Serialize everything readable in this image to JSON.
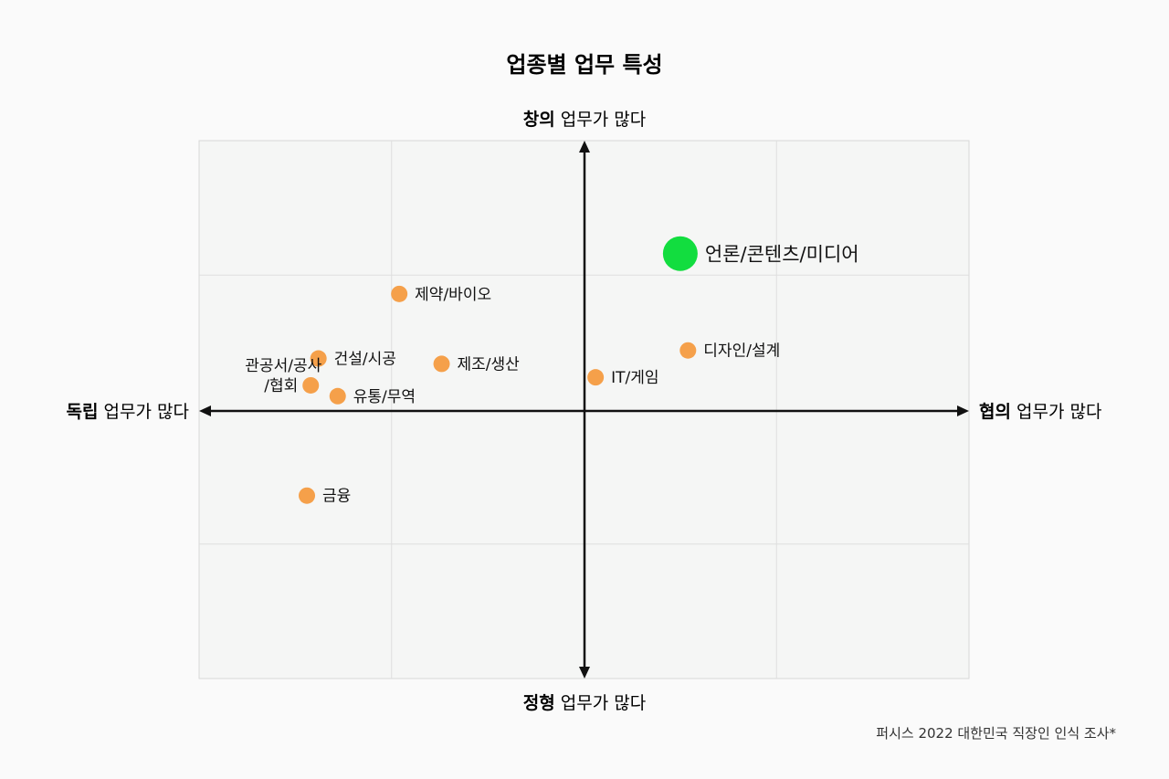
{
  "chart_data": {
    "type": "scatter",
    "title": "업종별 업무 특성",
    "axis_labels": {
      "top": {
        "bold": "창의",
        "rest": " 업무가 많다"
      },
      "bottom": {
        "bold": "정형",
        "rest": " 업무가 많다"
      },
      "left": {
        "bold": "독립",
        "rest": " 업무가 많다"
      },
      "right": {
        "bold": "협의",
        "rest": " 업무가 많다"
      }
    },
    "xlim": [
      -1,
      1
    ],
    "ylim": [
      -1,
      1
    ],
    "grid": true,
    "colors": {
      "default": "#f5a04a",
      "highlight": "#12dd3f"
    },
    "points": [
      {
        "label": "언론/콘텐츠/미디어",
        "x": 0.25,
        "y": 0.58,
        "highlight": true
      },
      {
        "label": "제약/바이오",
        "x": -0.48,
        "y": 0.43,
        "highlight": false
      },
      {
        "label": "건설/시공",
        "x": -0.69,
        "y": 0.19,
        "highlight": false
      },
      {
        "label": "제조/생산",
        "x": -0.37,
        "y": 0.17,
        "highlight": false
      },
      {
        "label": "디자인/설계",
        "x": 0.27,
        "y": 0.22,
        "highlight": false
      },
      {
        "label": "IT/게임",
        "x": 0.03,
        "y": 0.12,
        "highlight": false
      },
      {
        "label": "관공서/공사/협회",
        "x": -0.71,
        "y": 0.09,
        "highlight": false
      },
      {
        "label": "유통/무역",
        "x": -0.64,
        "y": 0.05,
        "highlight": false
      },
      {
        "label": "금융",
        "x": -0.72,
        "y": -0.32,
        "highlight": false
      }
    ]
  },
  "source": "퍼시스 2022 대한민국 직장인 인식 조사*"
}
